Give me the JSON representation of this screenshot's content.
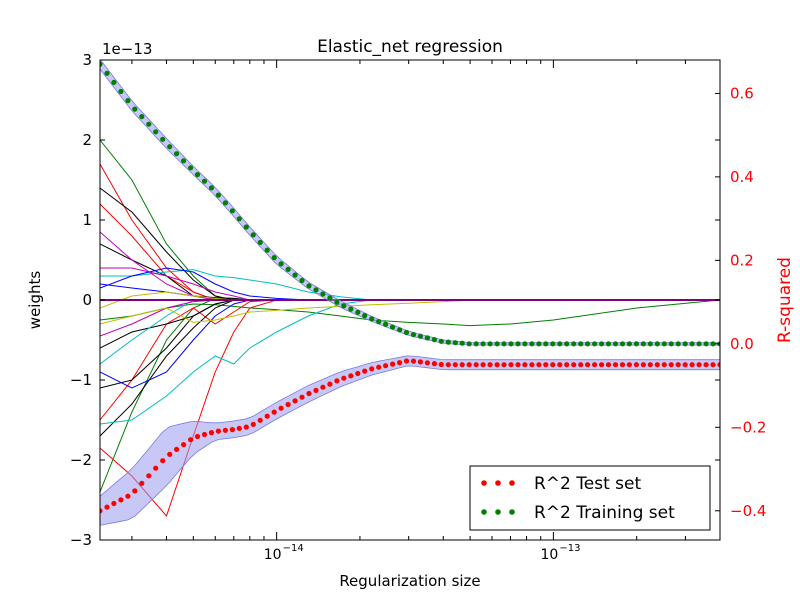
{
  "chart_data": {
    "type": "line",
    "title": "Elastic_net regression",
    "xlabel": "Regularization size",
    "ylabel": "weights",
    "y2label": "R-squared",
    "x_scale": "log",
    "xlim": [
      2.3e-15,
      4e-13
    ],
    "ylim": [
      -3e-13,
      3e-13
    ],
    "y2lim": [
      -0.47,
      0.68
    ],
    "y_offset_label": "1e−13",
    "x_ticks": [
      {
        "value": 1e-14,
        "label": "10",
        "exp": "−14"
      },
      {
        "value": 1e-13,
        "label": "10",
        "exp": "−13"
      }
    ],
    "y_ticks": [
      {
        "value": 3e-13,
        "label": "3"
      },
      {
        "value": 2e-13,
        "label": "2"
      },
      {
        "value": 1e-13,
        "label": "1"
      },
      {
        "value": 0,
        "label": "0"
      },
      {
        "value": -1e-13,
        "label": "−1"
      },
      {
        "value": -2e-13,
        "label": "−2"
      },
      {
        "value": -3e-13,
        "label": "−3"
      }
    ],
    "y2_ticks": [
      {
        "value": 0.6,
        "label": "0.6"
      },
      {
        "value": 0.4,
        "label": "0.4"
      },
      {
        "value": 0.2,
        "label": "0.2"
      },
      {
        "value": 0.0,
        "label": "0.0"
      },
      {
        "value": -0.2,
        "label": "−0.2"
      },
      {
        "value": -0.4,
        "label": "−0.4"
      }
    ],
    "y2_color": "#ff0000",
    "r2_test": {
      "name": "R^2 Test set",
      "color": "#ff0000",
      "x": [
        2.3e-15,
        3e-15,
        4e-15,
        5e-15,
        6e-15,
        7e-15,
        8e-15,
        1e-14,
        1.3e-14,
        1.7e-14,
        2.2e-14,
        3e-14,
        4e-14,
        5e-14,
        7e-14,
        1e-13,
        1.5e-13,
        2e-13,
        3e-13,
        4e-13
      ],
      "y": [
        -0.4,
        -0.36,
        -0.27,
        -0.225,
        -0.21,
        -0.205,
        -0.198,
        -0.16,
        -0.12,
        -0.085,
        -0.06,
        -0.04,
        -0.05,
        -0.05,
        -0.05,
        -0.05,
        -0.05,
        -0.05,
        -0.05,
        -0.05
      ],
      "band": [
        0.035,
        0.06,
        0.07,
        0.04,
        0.02,
        0.02,
        0.02,
        0.02,
        0.02,
        0.018,
        0.015,
        0.012,
        0.012,
        0.012,
        0.012,
        0.012,
        0.012,
        0.012,
        0.012,
        0.012
      ]
    },
    "r2_train": {
      "name": "R^2 Training set",
      "color": "#008000",
      "x": [
        2.3e-15,
        3e-15,
        4e-15,
        5e-15,
        6e-15,
        7e-15,
        8e-15,
        1e-14,
        1.3e-14,
        1.7e-14,
        2.2e-14,
        3e-14,
        4e-14,
        5e-14,
        7e-14,
        1e-13,
        1.5e-13,
        2e-13,
        3e-13,
        4e-13
      ],
      "y": [
        0.67,
        0.57,
        0.48,
        0.415,
        0.365,
        0.315,
        0.27,
        0.2,
        0.14,
        0.095,
        0.06,
        0.025,
        0.005,
        0.0,
        0.0,
        0.0,
        0.0,
        0.0,
        0.0,
        0.0
      ],
      "band": [
        0.012,
        0.012,
        0.012,
        0.01,
        0.01,
        0.01,
        0.01,
        0.01,
        0.008,
        0.008,
        0.006,
        0.005,
        0.004,
        0.003,
        0.003,
        0.003,
        0.003,
        0.003,
        0.003,
        0.003
      ]
    },
    "weight_x": [
      2.3e-15,
      3e-15,
      4e-15,
      5e-15,
      6e-15,
      7e-15,
      8e-15,
      1e-14,
      1.3e-14,
      1.7e-14,
      2.2e-14,
      3e-14,
      4e-14,
      5e-14,
      7e-14,
      1e-13,
      2e-13,
      4e-13
    ],
    "weight_paths": [
      {
        "color": "#008000",
        "values": [
          2e-13,
          1.5e-13,
          7e-14,
          3e-14,
          5e-15,
          0,
          0,
          0,
          0,
          0,
          0,
          0,
          0,
          0,
          0,
          0,
          0,
          0
        ]
      },
      {
        "color": "#008000",
        "values": [
          -2.4e-13,
          -1.4e-13,
          -5e-14,
          -1e-14,
          2e-15,
          2e-15,
          0,
          0,
          0,
          0,
          0,
          0,
          0,
          0,
          0,
          0,
          0,
          0
        ]
      },
      {
        "color": "#008000",
        "values": [
          -2.5e-14,
          -2e-14,
          -1e-14,
          -5e-15,
          -6e-15,
          -8e-15,
          -1e-14,
          -1.2e-14,
          -1.5e-14,
          -2e-14,
          -2.5e-14,
          -2.8e-14,
          -3e-14,
          -3.2e-14,
          -3e-14,
          -2.5e-14,
          -1e-14,
          0
        ]
      },
      {
        "color": "#ff0000",
        "values": [
          1.7e-13,
          1e-13,
          4e-14,
          1e-14,
          0,
          0,
          0,
          0,
          0,
          0,
          0,
          0,
          0,
          0,
          0,
          0,
          0,
          0
        ]
      },
      {
        "color": "#ff0000",
        "values": [
          -1.85e-13,
          -2.2e-13,
          -2.7e-13,
          -1.7e-13,
          -9e-14,
          -4e-14,
          -1e-14,
          0,
          0,
          0,
          0,
          0,
          0,
          0,
          0,
          0,
          0,
          0
        ]
      },
      {
        "color": "#ff0000",
        "values": [
          -1.5e-13,
          -1e-13,
          -3e-14,
          -1e-14,
          -3e-14,
          -1.5e-14,
          -2e-15,
          0,
          0,
          0,
          0,
          0,
          0,
          0,
          0,
          0,
          0,
          0
        ]
      },
      {
        "color": "#ff0000",
        "values": [
          1.2e-13,
          8e-14,
          3e-14,
          1e-14,
          0,
          0,
          0,
          0,
          0,
          0,
          0,
          0,
          0,
          0,
          0,
          0,
          0,
          0
        ]
      },
      {
        "color": "#000000",
        "values": [
          1.4e-13,
          1.1e-13,
          6e-14,
          2.5e-14,
          5e-15,
          0,
          0,
          0,
          0,
          0,
          0,
          0,
          0,
          0,
          0,
          0,
          0,
          0
        ]
      },
      {
        "color": "#000000",
        "values": [
          7e-14,
          5e-14,
          3e-14,
          5e-15,
          3e-15,
          2e-15,
          0,
          0,
          0,
          0,
          0,
          0,
          0,
          0,
          0,
          0,
          0,
          0
        ]
      },
      {
        "color": "#000000",
        "values": [
          -1.1e-13,
          -1e-13,
          -6e-14,
          -2e-14,
          -5e-15,
          0,
          0,
          0,
          0,
          0,
          0,
          0,
          0,
          0,
          0,
          0,
          0,
          0
        ]
      },
      {
        "color": "#000000",
        "values": [
          -1.7e-13,
          -1.3e-13,
          -7e-14,
          -3.5e-14,
          -1e-14,
          0,
          0,
          0,
          0,
          0,
          0,
          0,
          0,
          0,
          0,
          0,
          0,
          0
        ]
      },
      {
        "color": "#000000",
        "values": [
          -6e-14,
          -4e-14,
          -3e-14,
          -2e-14,
          -5e-15,
          0,
          0,
          0,
          0,
          0,
          0,
          0,
          0,
          0,
          0,
          0,
          0,
          0
        ]
      },
      {
        "color": "#00bfbf",
        "values": [
          -1.55e-13,
          -1.5e-13,
          -1.2e-13,
          -9e-14,
          -7e-14,
          -8e-14,
          -6e-14,
          -4e-14,
          -2e-14,
          -5e-15,
          0,
          0,
          0,
          0,
          0,
          0,
          0,
          0
        ]
      },
      {
        "color": "#00bfbf",
        "values": [
          3e-14,
          3e-14,
          3.5e-14,
          3.8e-14,
          3e-14,
          2.8e-14,
          2.5e-14,
          2e-14,
          1e-14,
          4e-15,
          0,
          0,
          0,
          0,
          0,
          0,
          0,
          0
        ]
      },
      {
        "color": "#00bfbf",
        "values": [
          -8e-14,
          -5e-14,
          -2e-14,
          0,
          0,
          0,
          0,
          0,
          0,
          0,
          0,
          0,
          0,
          0,
          0,
          0,
          0,
          0
        ]
      },
      {
        "color": "#bf00bf",
        "values": [
          8.5e-14,
          5e-14,
          2e-14,
          5e-15,
          0,
          0,
          0,
          0,
          0,
          0,
          0,
          0,
          0,
          0,
          0,
          0,
          0,
          0
        ]
      },
      {
        "color": "#bf00bf",
        "values": [
          -4.5e-14,
          -3e-14,
          -1e-14,
          -2e-15,
          0,
          0,
          0,
          0,
          0,
          0,
          0,
          0,
          0,
          0,
          0,
          0,
          0,
          0
        ]
      },
      {
        "color": "#bf00bf",
        "values": [
          4e-14,
          4e-14,
          3e-14,
          2e-14,
          1e-14,
          5e-15,
          0,
          0,
          0,
          0,
          0,
          0,
          0,
          0,
          0,
          0,
          0,
          0
        ]
      },
      {
        "color": "#0000ff",
        "values": [
          1.5e-14,
          3e-14,
          4e-14,
          3.5e-14,
          2e-14,
          1e-14,
          5e-15,
          2e-15,
          0,
          0,
          0,
          0,
          0,
          0,
          0,
          0,
          0,
          0
        ]
      },
      {
        "color": "#0000ff",
        "values": [
          -9e-14,
          -1.1e-13,
          -9e-14,
          -5e-14,
          -2e-14,
          -5e-15,
          0,
          0,
          0,
          0,
          0,
          0,
          0,
          0,
          0,
          0,
          0,
          0
        ]
      },
      {
        "color": "#0000ff",
        "values": [
          2e-14,
          1.5e-14,
          1e-14,
          5e-15,
          2e-15,
          0,
          0,
          0,
          0,
          0,
          0,
          0,
          0,
          0,
          0,
          0,
          0,
          0
        ]
      },
      {
        "color": "#bfbf00",
        "values": [
          -3e-14,
          -2e-14,
          -1e-14,
          -2.8e-14,
          -2.5e-14,
          -2e-14,
          -1.5e-14,
          -1.3e-14,
          -1e-14,
          -8e-15,
          -6e-15,
          -4e-15,
          -2e-15,
          0,
          0,
          0,
          0,
          0
        ]
      },
      {
        "color": "#bfbf00",
        "values": [
          -1e-14,
          5e-15,
          1e-14,
          5e-15,
          2e-15,
          0,
          0,
          0,
          0,
          0,
          0,
          0,
          0,
          0,
          0,
          0,
          0,
          0
        ]
      }
    ],
    "zero_line_color": "#800080",
    "legend": {
      "position": "lower-right",
      "entries": [
        {
          "label": "R^2 Test set",
          "color": "#ff0000"
        },
        {
          "label": "R^2 Training set",
          "color": "#008000"
        }
      ]
    }
  }
}
